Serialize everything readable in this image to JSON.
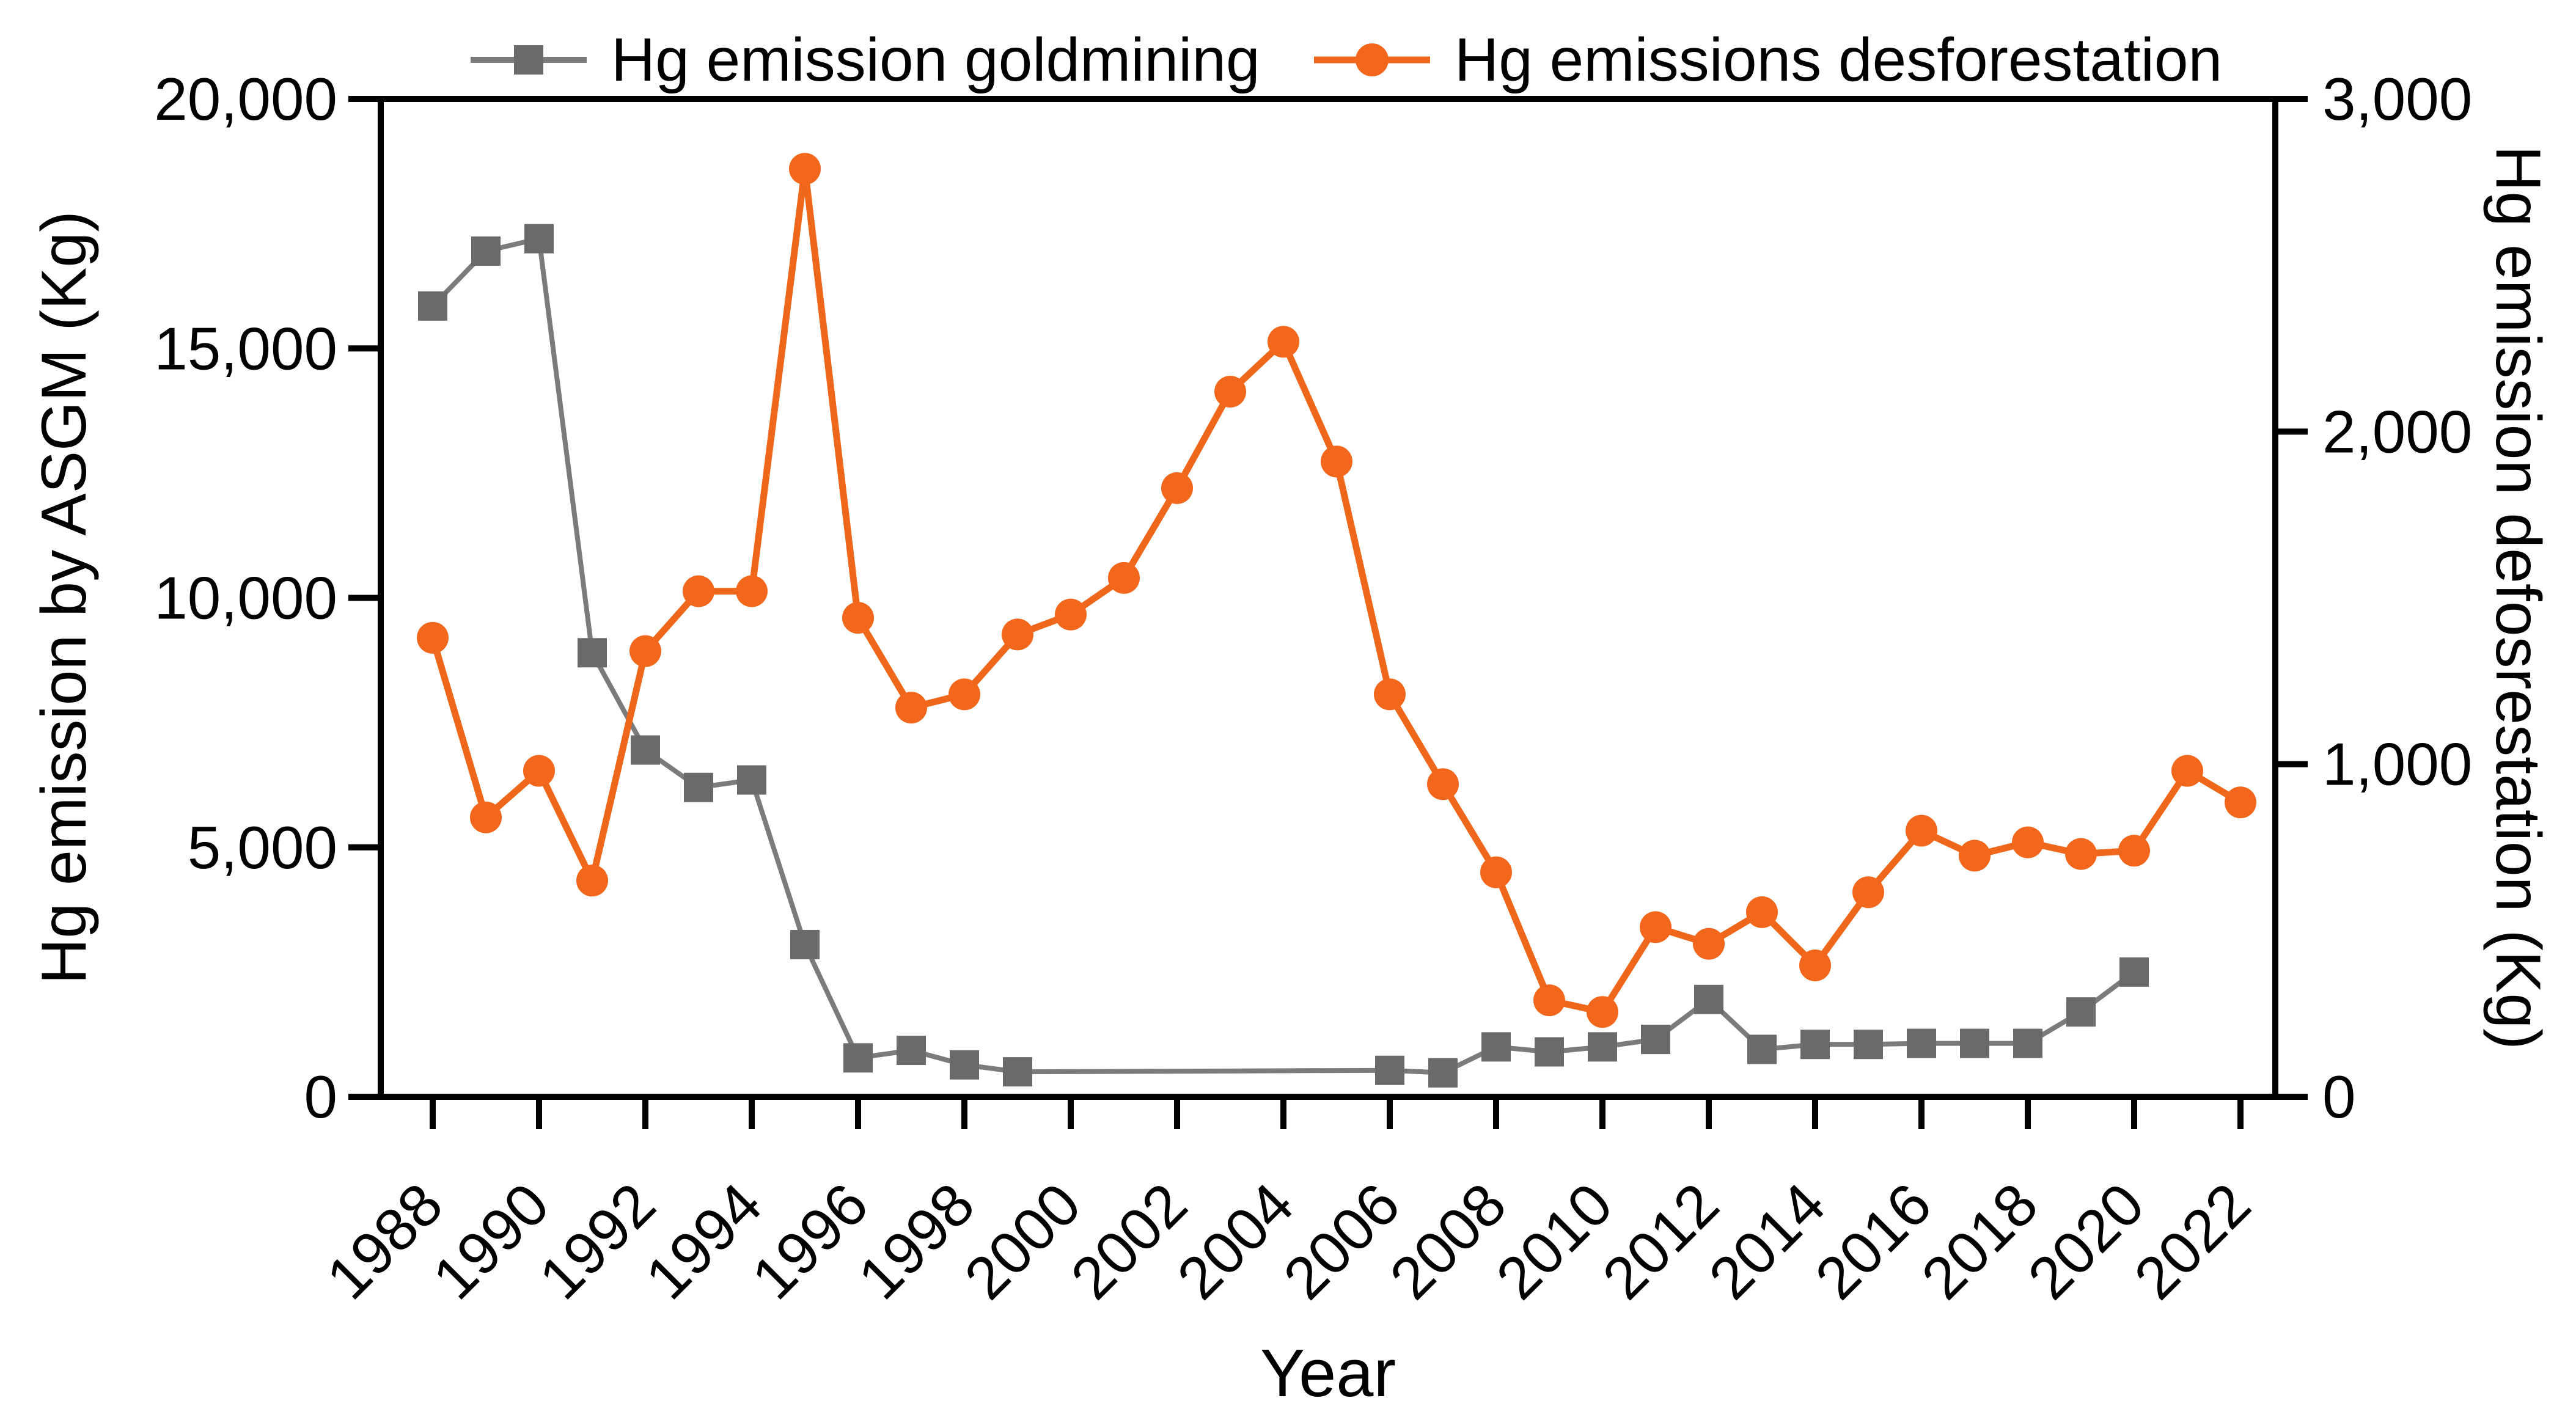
{
  "chart_data": {
    "type": "line",
    "title": "",
    "xlabel": "Year",
    "ylabel_left": "Hg emission by ASGM (Kg)",
    "ylabel_right": "Hg emission defosrestation (Kg)",
    "x": [
      1988,
      1989,
      1990,
      1991,
      1992,
      1993,
      1994,
      1995,
      1996,
      1997,
      1998,
      1999,
      2000,
      2001,
      2002,
      2003,
      2004,
      2005,
      2006,
      2007,
      2008,
      2009,
      2010,
      2011,
      2012,
      2013,
      2014,
      2015,
      2016,
      2017,
      2018,
      2019,
      2020,
      2021,
      2022
    ],
    "x_tick_years": [
      1988,
      1990,
      1992,
      1994,
      1996,
      1998,
      2000,
      2002,
      2004,
      2006,
      2008,
      2010,
      2012,
      2014,
      2016,
      2018,
      2020,
      2022
    ],
    "ylim_left": [
      0,
      20000
    ],
    "yticks_left": [
      {
        "value": 0,
        "label": "0"
      },
      {
        "value": 5000,
        "label": "5,000"
      },
      {
        "value": 10000,
        "label": "10,000"
      },
      {
        "value": 15000,
        "label": "15,000"
      },
      {
        "value": 20000,
        "label": "20,000"
      }
    ],
    "ylim_right": [
      0,
      3000
    ],
    "yticks_right": [
      {
        "value": 0,
        "label": "0"
      },
      {
        "value": 1000,
        "label": "1,000"
      },
      {
        "value": 2000,
        "label": "2,000"
      },
      {
        "value": 3000,
        "label": "3,000"
      }
    ],
    "grid": false,
    "legend_position": "top",
    "series": [
      {
        "name": "Hg emission goldmining",
        "axis": "left",
        "marker": "square",
        "marker_color": "#6a6a6a",
        "line_color": "#7b7b7b",
        "line_width": 8,
        "values": [
          15850,
          16950,
          17200,
          8900,
          6950,
          6200,
          6350,
          3050,
          780,
          930,
          640,
          500,
          null,
          null,
          null,
          null,
          null,
          null,
          530,
          480,
          1000,
          900,
          1000,
          1150,
          1950,
          950,
          1050,
          1050,
          1070,
          1070,
          1070,
          1700,
          2500,
          null,
          null
        ]
      },
      {
        "name": "Hg emissions desforestation",
        "axis": "right",
        "marker": "circle",
        "marker_color": "#f3671c",
        "line_color": "#ee671a",
        "line_width": 11,
        "values": [
          1380,
          840,
          980,
          650,
          1340,
          1520,
          1520,
          2790,
          1440,
          1170,
          1210,
          1390,
          1450,
          1560,
          1830,
          2120,
          2270,
          1910,
          1210,
          940,
          675,
          290,
          255,
          510,
          460,
          555,
          395,
          615,
          800,
          725,
          765,
          730,
          740,
          980,
          885
        ]
      }
    ],
    "colors": {
      "axis": "#000000",
      "background": "#ffffff",
      "goldmining": "#6a6a6a",
      "desforestation": "#f3671c"
    }
  }
}
